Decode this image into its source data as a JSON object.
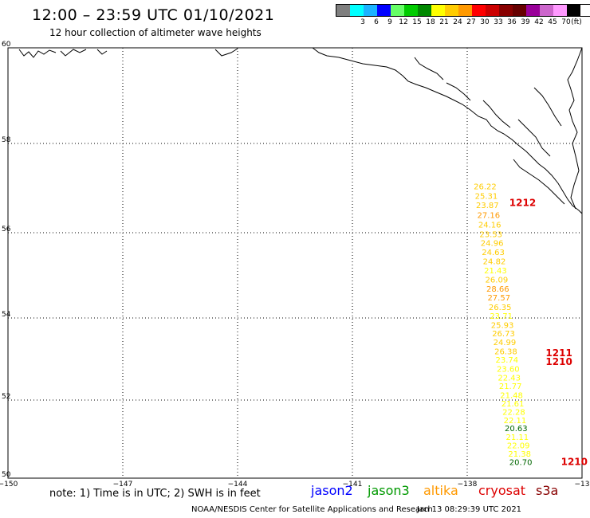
{
  "header": {
    "title": "12:00 – 23:59 UTC 01/10/2021",
    "subtitle": "12 hour collection of altimeter wave heights"
  },
  "legend": {
    "unit_label": "(ft)",
    "swatches": [
      {
        "label": "",
        "color": "#7f7f7f"
      },
      {
        "label": "3",
        "color": "#00ffff"
      },
      {
        "label": "6",
        "color": "#1ab2ff"
      },
      {
        "label": "9",
        "color": "#0000ff"
      },
      {
        "label": "12",
        "color": "#66ff66"
      },
      {
        "label": "15",
        "color": "#00cc00"
      },
      {
        "label": "18",
        "color": "#008800"
      },
      {
        "label": "21",
        "color": "#ffff00"
      },
      {
        "label": "24",
        "color": "#ffcc00"
      },
      {
        "label": "27",
        "color": "#ff9900"
      },
      {
        "label": "30",
        "color": "#ff0000"
      },
      {
        "label": "33",
        "color": "#cc0000"
      },
      {
        "label": "36",
        "color": "#880000"
      },
      {
        "label": "39",
        "color": "#660000"
      },
      {
        "label": "42",
        "color": "#990099"
      },
      {
        "label": "45",
        "color": "#cc66cc"
      },
      {
        "label": "70",
        "color": "#ff99ff"
      },
      {
        "label": "",
        "color": "#000000"
      }
    ]
  },
  "map": {
    "lon_labels": [
      "−150",
      "−147",
      "−144",
      "−141",
      "−138",
      "−13"
    ],
    "lat_labels": [
      "60",
      "58",
      "56",
      "54",
      "52",
      "50"
    ],
    "wave_heights": [
      {
        "value": "26.22",
        "lat": 56.97,
        "lon": -137.83,
        "color": "#ffcc00"
      },
      {
        "value": "25.31",
        "lat": 56.76,
        "lon": -137.8,
        "color": "#ffcc00"
      },
      {
        "value": "23.87",
        "lat": 56.55,
        "lon": -137.77,
        "color": "#ffcc00"
      },
      {
        "value": "27.16",
        "lat": 56.33,
        "lon": -137.74,
        "color": "#ff9900"
      },
      {
        "value": "24.16",
        "lat": 56.12,
        "lon": -137.71,
        "color": "#ffcc00"
      },
      {
        "value": "23.53",
        "lat": 55.9,
        "lon": -137.68,
        "color": "#ffcc00"
      },
      {
        "value": "24.96",
        "lat": 55.69,
        "lon": -137.65,
        "color": "#ffcc00"
      },
      {
        "value": "24.63",
        "lat": 55.48,
        "lon": -137.62,
        "color": "#ffcc00"
      },
      {
        "value": "24.82",
        "lat": 55.26,
        "lon": -137.59,
        "color": "#ffcc00"
      },
      {
        "value": "21.43",
        "lat": 55.05,
        "lon": -137.56,
        "color": "#ffff00"
      },
      {
        "value": "26.09",
        "lat": 54.83,
        "lon": -137.53,
        "color": "#ffcc00"
      },
      {
        "value": "28.66",
        "lat": 54.62,
        "lon": -137.5,
        "color": "#ff9900"
      },
      {
        "value": "27.57",
        "lat": 54.41,
        "lon": -137.47,
        "color": "#ff9900"
      },
      {
        "value": "26.35",
        "lat": 54.19,
        "lon": -137.44,
        "color": "#ffcc00"
      },
      {
        "value": "23.71",
        "lat": 53.98,
        "lon": -137.41,
        "color": "#ffff00"
      },
      {
        "value": "25.93",
        "lat": 53.76,
        "lon": -137.38,
        "color": "#ffcc00"
      },
      {
        "value": "26.73",
        "lat": 53.55,
        "lon": -137.35,
        "color": "#ffcc00"
      },
      {
        "value": "24.99",
        "lat": 53.34,
        "lon": -137.32,
        "color": "#ffcc00"
      },
      {
        "value": "26.38",
        "lat": 53.12,
        "lon": -137.29,
        "color": "#ffcc00"
      },
      {
        "value": "23.74",
        "lat": 52.91,
        "lon": -137.26,
        "color": "#ffff00"
      },
      {
        "value": "23.60",
        "lat": 52.69,
        "lon": -137.23,
        "color": "#ffff00"
      },
      {
        "value": "22.43",
        "lat": 52.48,
        "lon": -137.2,
        "color": "#ffff00"
      },
      {
        "value": "21.77",
        "lat": 52.27,
        "lon": -137.17,
        "color": "#ffff00"
      },
      {
        "value": "21.48",
        "lat": 52.05,
        "lon": -137.14,
        "color": "#ffff00"
      },
      {
        "value": "21.61",
        "lat": 51.84,
        "lon": -137.11,
        "color": "#ffff00"
      },
      {
        "value": "22.28",
        "lat": 51.62,
        "lon": -137.08,
        "color": "#ffff00"
      },
      {
        "value": "22.11",
        "lat": 51.41,
        "lon": -137.05,
        "color": "#ffff00"
      },
      {
        "value": "20.63",
        "lat": 51.2,
        "lon": -137.02,
        "color": "#006600"
      },
      {
        "value": "21.11",
        "lat": 50.98,
        "lon": -136.99,
        "color": "#ffff00"
      },
      {
        "value": "22.09",
        "lat": 50.77,
        "lon": -136.96,
        "color": "#ffff00"
      },
      {
        "value": "21.38",
        "lat": 50.55,
        "lon": -136.93,
        "color": "#ffff00"
      },
      {
        "value": "20.70",
        "lat": 50.34,
        "lon": -136.9,
        "color": "#006600"
      }
    ],
    "time_labels": [
      {
        "value": "1212",
        "lat": 56.6,
        "lon": -136.9,
        "color": "#dd0000"
      },
      {
        "value": "1211",
        "lat": 53.07,
        "lon": -135.95,
        "color": "#dd0000"
      },
      {
        "value": "1210",
        "lat": 52.85,
        "lon": -135.95,
        "color": "#dd0000"
      },
      {
        "value": "1210",
        "lat": 50.34,
        "lon": -135.55,
        "color": "#dd0000"
      }
    ]
  },
  "footer": {
    "note": "note: 1) Time is in UTC; 2) SWH is in feet",
    "satellites": [
      {
        "name": "jason2",
        "color": "#0000ff"
      },
      {
        "name": "jason3",
        "color": "#009900"
      },
      {
        "name": "altika",
        "color": "#ff9900"
      },
      {
        "name": "cryosat",
        "color": "#dd0000"
      },
      {
        "name": "s3a",
        "color": "#880000"
      }
    ],
    "credit": "NOAA/NESDIS Center for Satellite Applications and Research",
    "date": "Jan 13 08:29:39 UTC 2021"
  }
}
